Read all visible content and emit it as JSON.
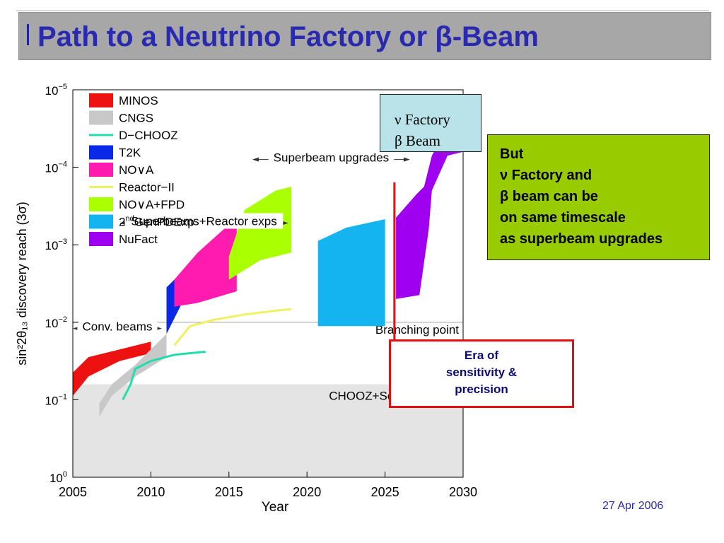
{
  "slide": {
    "title": "Path to a Neutrino Factory or β-Beam",
    "date": "27 Apr 2006"
  },
  "notes": {
    "nu_box": {
      "line1": "ν Factory",
      "line2": "β Beam"
    },
    "but_box": {
      "lines": [
        "But",
        "ν Factory and",
        "β beam can be",
        "on same timescale",
        "as superbeam upgrades"
      ]
    },
    "era_box": {
      "lines": [
        "Era of",
        "sensitivity &",
        "precision"
      ]
    }
  },
  "colors": {
    "title": "#2a2ab0",
    "title_bar": "#a7a7a7",
    "but_box": "#99cc00",
    "nu_box": "#b9e3e8",
    "era_border": "#e41010",
    "era_line": "#e41010"
  },
  "chart_data": {
    "type": "area",
    "xlabel": "Year",
    "ylabel": "sin²2θ₁₃ discovery reach (3σ)",
    "xlim": [
      2005,
      2030
    ],
    "ylim_exponent": [
      -5,
      0
    ],
    "y_scale": "log-inverted",
    "x_ticks": [
      "2005",
      "2010",
      "2015",
      "2020",
      "2025",
      "2030"
    ],
    "y_ticks": [
      {
        "base": "10",
        "exp": "−5",
        "e": -5
      },
      {
        "base": "10",
        "exp": "−4",
        "e": -4
      },
      {
        "base": "10",
        "exp": "−3",
        "e": -3
      },
      {
        "base": "10",
        "exp": "−2",
        "e": -2
      },
      {
        "base": "10",
        "exp": "−1",
        "e": -1
      },
      {
        "base": "10",
        "exp": "0",
        "e": 0
      }
    ],
    "legend": {
      "placement": "top-left",
      "entries": [
        {
          "name": "MINOS",
          "color": "#ee1111",
          "kind": "patch"
        },
        {
          "name": "CNGS",
          "color": "#c8c8c8",
          "kind": "patch"
        },
        {
          "name": "D−CHOOZ",
          "color": "#22ddaa",
          "kind": "line"
        },
        {
          "name": "T2K",
          "color": "#0a28e8",
          "kind": "patch"
        },
        {
          "name": "NO∨A",
          "color": "#ff1ab0",
          "kind": "patch"
        },
        {
          "name": "Reactor−II",
          "color": "#f0f060",
          "kind": "line"
        },
        {
          "name": "NO∨A+FPD",
          "color": "#aaff00",
          "kind": "patch"
        },
        {
          "name": "2nd GenPDExp",
          "color": "#14b4f0",
          "kind": "patch"
        },
        {
          "name": "NuFact",
          "color": "#a000f0",
          "kind": "patch"
        }
      ]
    },
    "regions": [
      {
        "name": "CHOOZ+Solar excluded",
        "color": "#e4e4e4",
        "x": [
          2005,
          2030
        ],
        "y_exp": [
          -1.2,
          0
        ]
      }
    ],
    "reference_lines": [
      {
        "name": "Branching point",
        "y_exp": -2
      }
    ],
    "series": [
      {
        "name": "MINOS",
        "color": "#ee1111",
        "top": [
          [
            2005,
            -1.35
          ],
          [
            2006,
            -1.55
          ],
          [
            2008,
            -1.65
          ],
          [
            2010,
            -1.75
          ]
        ],
        "bottom": [
          [
            2010,
            -1.6
          ],
          [
            2008,
            -1.5
          ],
          [
            2006,
            -1.3
          ],
          [
            2005,
            -1.05
          ]
        ]
      },
      {
        "name": "CNGS",
        "color": "#c8c8c8",
        "top": [
          [
            2006.7,
            -0.95
          ],
          [
            2007.5,
            -1.2
          ],
          [
            2009,
            -1.45
          ],
          [
            2011,
            -1.85
          ]
        ],
        "bottom": [
          [
            2011,
            -1.55
          ],
          [
            2009,
            -1.3
          ],
          [
            2007.5,
            -1.05
          ],
          [
            2006.7,
            -0.78
          ]
        ]
      },
      {
        "name": "T2K",
        "color": "#0a28e8",
        "top": [
          [
            2011,
            -2.45
          ],
          [
            2012,
            -2.65
          ],
          [
            2013.5,
            -2.9
          ],
          [
            2015,
            -2.95
          ]
        ],
        "bottom": [
          [
            2015,
            -2.4
          ],
          [
            2013.5,
            -2.45
          ],
          [
            2012,
            -2.25
          ],
          [
            2011,
            -1.85
          ]
        ]
      },
      {
        "name": "NO∨A",
        "color": "#ff1ab0",
        "top": [
          [
            2011.5,
            -2.55
          ],
          [
            2013,
            -2.9
          ],
          [
            2015.5,
            -3.35
          ]
        ],
        "bottom": [
          [
            2015.5,
            -2.4
          ],
          [
            2013,
            -2.25
          ],
          [
            2011.5,
            -2.2
          ]
        ]
      },
      {
        "name": "NO∨A+FPD",
        "color": "#aaff00",
        "top": [
          [
            2015,
            -2.85
          ],
          [
            2016,
            -3.45
          ],
          [
            2018,
            -3.7
          ],
          [
            2019,
            -3.75
          ]
        ],
        "bottom": [
          [
            2019,
            -2.9
          ],
          [
            2017,
            -2.8
          ],
          [
            2015,
            -2.55
          ]
        ]
      },
      {
        "name": "2nd GenPDExp",
        "color": "#14b4f0",
        "top": [
          [
            2020.7,
            -3.05
          ],
          [
            2022.5,
            -3.22
          ],
          [
            2025,
            -3.33
          ]
        ],
        "bottom": [
          [
            2025,
            -1.95
          ],
          [
            2020.7,
            -1.95
          ]
        ]
      },
      {
        "name": "NuFact",
        "color": "#a000f0",
        "top": [
          [
            2025.7,
            -3.35
          ],
          [
            2027,
            -3.65
          ],
          [
            2027.5,
            -3.75
          ],
          [
            2028,
            -4.15
          ],
          [
            2029.2,
            -4.6
          ],
          [
            2030,
            -4.75
          ]
        ],
        "bottom": [
          [
            2030,
            -4.2
          ],
          [
            2029,
            -4.15
          ],
          [
            2028,
            -3.7
          ],
          [
            2027.8,
            -3.2
          ],
          [
            2027.2,
            -2.35
          ],
          [
            2025.7,
            -2.3
          ]
        ]
      }
    ],
    "lines": [
      {
        "name": "D−CHOOZ",
        "color": "#22ddaa",
        "points": [
          [
            2008.2,
            -1.0
          ],
          [
            2008.7,
            -1.2
          ],
          [
            2009,
            -1.4
          ],
          [
            2010,
            -1.5
          ],
          [
            2011.5,
            -1.58
          ],
          [
            2013.5,
            -1.62
          ]
        ]
      },
      {
        "name": "Reactor−II",
        "color": "#f0f060",
        "points": [
          [
            2011.5,
            -1.7
          ],
          [
            2012.5,
            -1.95
          ],
          [
            2014,
            -2.03
          ],
          [
            2016,
            -2.1
          ],
          [
            2018,
            -2.15
          ],
          [
            2019,
            -2.17
          ]
        ]
      }
    ],
    "annotations": [
      {
        "text": "Conv. beams",
        "x": [
          2005,
          2010.7
        ],
        "y_exp": -1.92
      },
      {
        "text": "Superbeams+Reactor exps",
        "x": [
          2008,
          2018.8
        ],
        "y_exp": -3.28
      },
      {
        "text": "Superbeam upgrades",
        "x": [
          2016.5,
          2026.6
        ],
        "y_exp": -4.1
      }
    ],
    "era_marker": {
      "x": 2025.6
    }
  }
}
